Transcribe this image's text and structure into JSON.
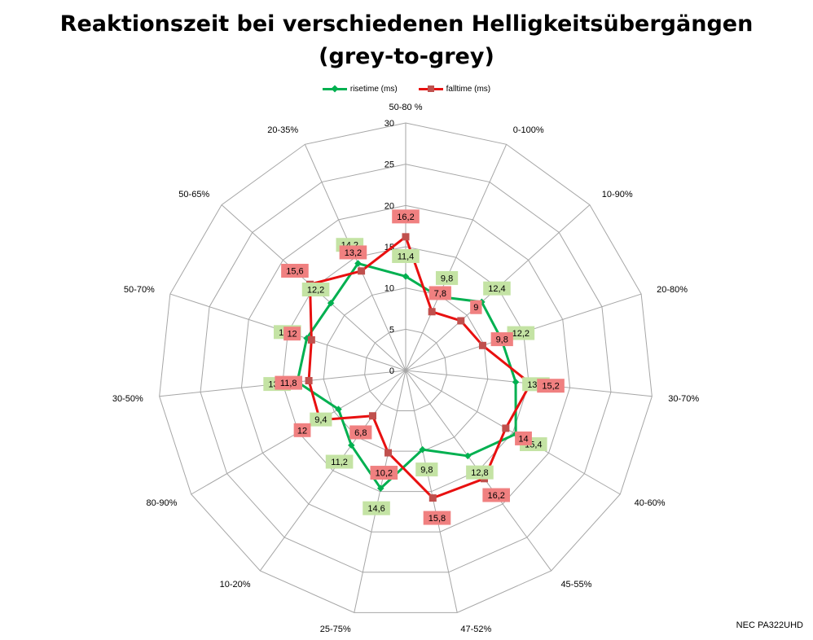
{
  "title_line1": "Reaktionszeit bei verschiedenen Helligkeitsübergängen",
  "title_line2": "(grey-to-grey)",
  "footer": "NEC PA322UHD",
  "colors": {
    "rise": "#00b050",
    "fall": "#e81010",
    "rise_label_bg": "#c4e3a4",
    "fall_label_bg": "#f08080",
    "grid": "#a6a6a6"
  },
  "chart_data": {
    "type": "radar",
    "categories": [
      "50-80 %",
      "0-100%",
      "10-90%",
      "20-80%",
      "30-70%",
      "40-60%",
      "45-55%",
      "47-52%",
      "25-75%",
      "10-20%",
      "80-90%",
      "30-50%",
      "50-70%",
      "50-65%",
      "20-35%"
    ],
    "series": [
      {
        "name": "risetime (ms)",
        "values": [
          11.4,
          9.8,
          12.4,
          12.2,
          13.4,
          15.4,
          12.8,
          9.8,
          14.6,
          11.2,
          9.4,
          13.2,
          12.6,
          12.2,
          14.2
        ],
        "labels": [
          "11,4",
          "9,8",
          "12,4",
          "12,2",
          "13,4",
          "15,4",
          "12,8",
          "9,8",
          "14,6",
          "11,2",
          "9,4",
          "13,2",
          "12,6",
          "12,2",
          "14,2"
        ]
      },
      {
        "name": "falltime (ms)",
        "values": [
          16.2,
          7.8,
          9,
          9.8,
          15.2,
          14,
          16.2,
          15.8,
          10.2,
          6.8,
          12,
          11.8,
          12,
          15.6,
          13.2
        ],
        "labels": [
          "16,2",
          "7,8",
          "9",
          "9,8",
          "15,2",
          "14",
          "16,2",
          "15,8",
          "10,2",
          "6,8",
          "12",
          "11,8",
          "12",
          "15,6",
          "13,2"
        ]
      }
    ],
    "r_ticks": [
      "0",
      "5",
      "10",
      "15",
      "20",
      "25",
      "30"
    ],
    "rlim": [
      0,
      30
    ],
    "grid": true,
    "legend_position": "top"
  }
}
